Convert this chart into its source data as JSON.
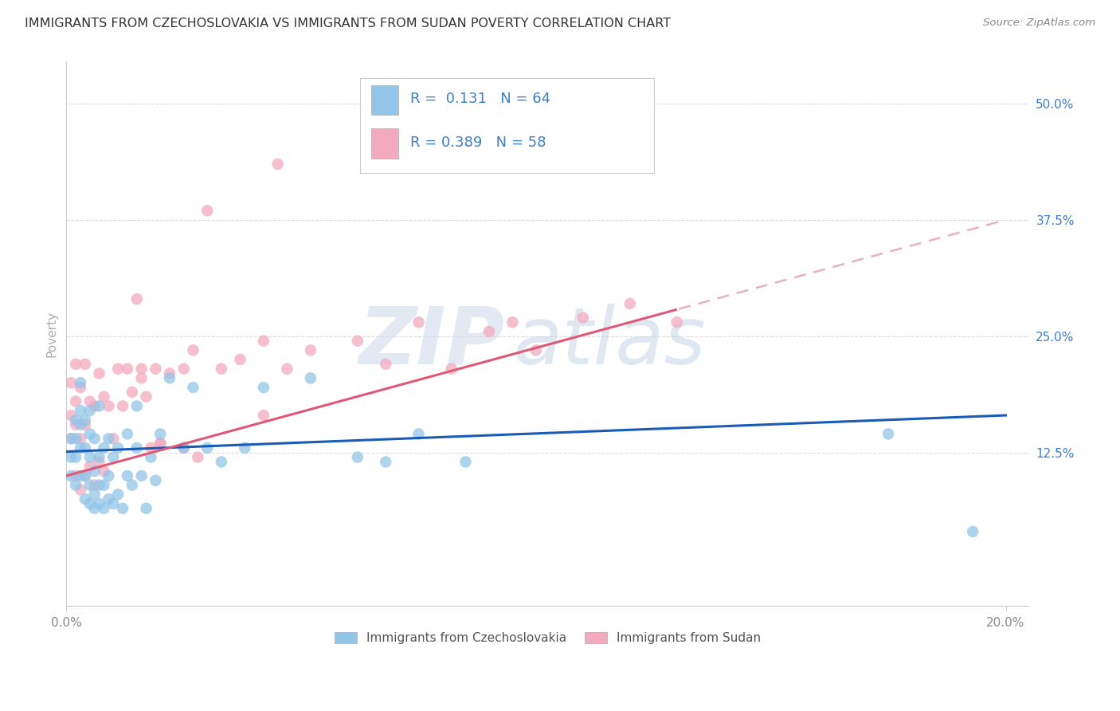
{
  "title": "IMMIGRANTS FROM CZECHOSLOVAKIA VS IMMIGRANTS FROM SUDAN POVERTY CORRELATION CHART",
  "source": "Source: ZipAtlas.com",
  "ylabel": "Poverty",
  "ytick_labels": [
    "12.5%",
    "25.0%",
    "37.5%",
    "50.0%"
  ],
  "ytick_values": [
    0.125,
    0.25,
    0.375,
    0.5
  ],
  "xlim": [
    0.0,
    0.205
  ],
  "ylim": [
    -0.04,
    0.545
  ],
  "R_czech": 0.131,
  "N_czech": 64,
  "R_sudan": 0.389,
  "N_sudan": 58,
  "color_czech": "#92C5E8",
  "color_sudan": "#F4AABE",
  "line_color_czech": "#1A5BB5",
  "line_color_sudan": "#E05878",
  "line_color_dashed": "#E8B0C0",
  "background_color": "#FFFFFF",
  "watermark_zip": "ZIP",
  "watermark_atlas": "atlas",
  "legend_label_czech": "Immigrants from Czechoslovakia",
  "legend_label_sudan": "Immigrants from Sudan",
  "czech_x": [
    0.001,
    0.001,
    0.001,
    0.002,
    0.002,
    0.002,
    0.002,
    0.003,
    0.003,
    0.003,
    0.003,
    0.003,
    0.004,
    0.004,
    0.004,
    0.004,
    0.005,
    0.005,
    0.005,
    0.005,
    0.005,
    0.006,
    0.006,
    0.006,
    0.006,
    0.007,
    0.007,
    0.007,
    0.007,
    0.008,
    0.008,
    0.008,
    0.009,
    0.009,
    0.009,
    0.01,
    0.01,
    0.011,
    0.011,
    0.012,
    0.013,
    0.013,
    0.014,
    0.015,
    0.015,
    0.016,
    0.017,
    0.018,
    0.019,
    0.02,
    0.022,
    0.025,
    0.027,
    0.03,
    0.033,
    0.038,
    0.042,
    0.052,
    0.062,
    0.068,
    0.075,
    0.085,
    0.175,
    0.193
  ],
  "czech_y": [
    0.14,
    0.12,
    0.1,
    0.09,
    0.12,
    0.14,
    0.16,
    0.1,
    0.13,
    0.155,
    0.17,
    0.2,
    0.075,
    0.1,
    0.13,
    0.16,
    0.07,
    0.09,
    0.12,
    0.145,
    0.17,
    0.065,
    0.08,
    0.105,
    0.14,
    0.07,
    0.09,
    0.12,
    0.175,
    0.065,
    0.09,
    0.13,
    0.075,
    0.1,
    0.14,
    0.07,
    0.12,
    0.08,
    0.13,
    0.065,
    0.1,
    0.145,
    0.09,
    0.13,
    0.175,
    0.1,
    0.065,
    0.12,
    0.095,
    0.145,
    0.205,
    0.13,
    0.195,
    0.13,
    0.115,
    0.13,
    0.195,
    0.205,
    0.12,
    0.115,
    0.145,
    0.115,
    0.145,
    0.04
  ],
  "sudan_x": [
    0.001,
    0.001,
    0.001,
    0.002,
    0.002,
    0.002,
    0.002,
    0.003,
    0.003,
    0.003,
    0.004,
    0.004,
    0.004,
    0.005,
    0.005,
    0.006,
    0.006,
    0.007,
    0.007,
    0.008,
    0.008,
    0.009,
    0.01,
    0.011,
    0.012,
    0.013,
    0.014,
    0.016,
    0.017,
    0.018,
    0.019,
    0.02,
    0.022,
    0.025,
    0.027,
    0.03,
    0.033,
    0.037,
    0.042,
    0.047,
    0.052,
    0.062,
    0.068,
    0.075,
    0.082,
    0.09,
    0.095,
    0.1,
    0.11,
    0.12,
    0.13,
    0.042,
    0.015,
    0.016,
    0.02,
    0.025,
    0.028,
    0.045
  ],
  "sudan_y": [
    0.14,
    0.165,
    0.2,
    0.1,
    0.155,
    0.18,
    0.22,
    0.085,
    0.14,
    0.195,
    0.1,
    0.155,
    0.22,
    0.11,
    0.18,
    0.09,
    0.175,
    0.115,
    0.21,
    0.105,
    0.185,
    0.175,
    0.14,
    0.215,
    0.175,
    0.215,
    0.19,
    0.215,
    0.185,
    0.13,
    0.215,
    0.135,
    0.21,
    0.215,
    0.235,
    0.385,
    0.215,
    0.225,
    0.245,
    0.215,
    0.235,
    0.245,
    0.22,
    0.265,
    0.215,
    0.255,
    0.265,
    0.235,
    0.27,
    0.285,
    0.265,
    0.165,
    0.29,
    0.205,
    0.135,
    0.13,
    0.12,
    0.435
  ]
}
